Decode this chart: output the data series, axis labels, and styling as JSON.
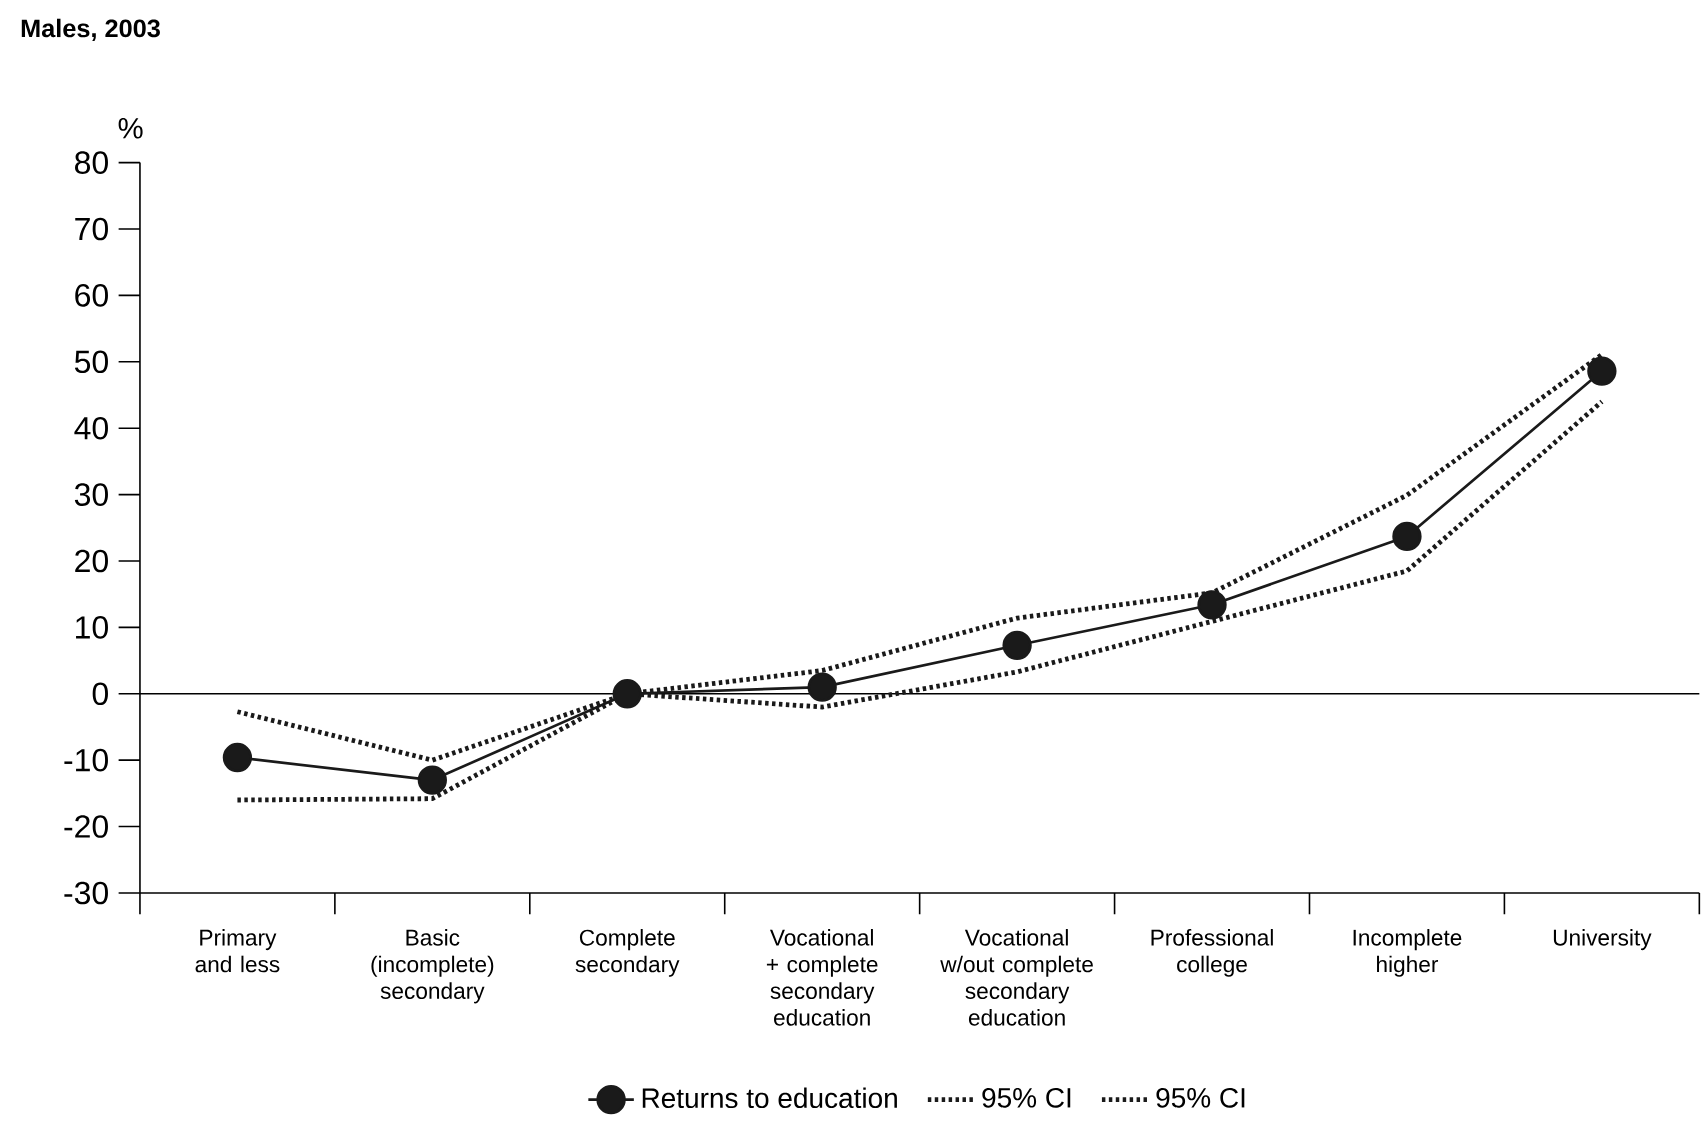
{
  "chart_data": {
    "type": "line",
    "title": "**Males, 2003**",
    "ylabel": "%",
    "categories": [
      "Primary and less",
      "Basic (incomplete) secondary",
      "Complete secondary",
      "Vocational + complete secondary education",
      "Vocational w/out complete secondary education",
      "Professional college",
      "Incomplete higher",
      "University"
    ],
    "series": [
      {
        "name": "Returns to education",
        "color": "#1a1a1a",
        "marker": "circle",
        "line_style": "solid",
        "values": [
          -9.6,
          -13,
          0,
          1,
          7.3,
          13.4,
          23.7,
          48.6
        ]
      },
      {
        "name": "95% CI",
        "color": "#1a1a1a",
        "marker": "none",
        "line_style": "dotted",
        "values": [
          -2.7,
          -10,
          0,
          3.5,
          11.4,
          15.2,
          29.9,
          51.1
        ]
      },
      {
        "name": "95% CI",
        "color": "#1a1a1a",
        "marker": "none",
        "line_style": "dotted",
        "values": [
          -16,
          -15.8,
          0,
          -2,
          3.3,
          10.9,
          18.5,
          44
        ]
      }
    ],
    "ylim": [
      -30,
      80
    ],
    "yticks": [
      -30,
      -20,
      -10,
      0,
      10,
      20,
      30,
      40,
      50,
      60,
      70,
      80
    ],
    "ref_lines": [
      {
        "axis": "y",
        "value": 0
      }
    ],
    "legend": "bottom"
  }
}
